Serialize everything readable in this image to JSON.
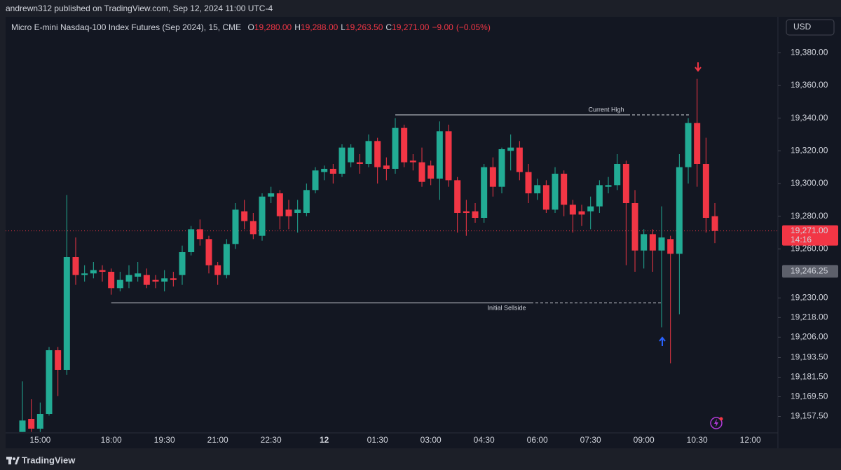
{
  "header": {
    "publisher": "andrewn312 published on TradingView.com, Sep 12, 2024 11:00 UTC-4"
  },
  "footer": {
    "brand": "TradingView"
  },
  "chart_data": {
    "type": "candlestick",
    "title": "Micro E-mini Nasdaq-100 Index Futures (Sep 2024), 15, CME",
    "currency": "USD",
    "ohlc_header": [
      {
        "key": "O",
        "value": 19280,
        "label": "19,280.00"
      },
      {
        "key": "H",
        "value": 19288,
        "label": "19,288.00"
      },
      {
        "key": "L",
        "value": 19263.5,
        "label": "19,263.50"
      },
      {
        "key": "C",
        "value": 19271,
        "label": "19,271.00"
      }
    ],
    "change": {
      "value": -9,
      "label": "−9.00"
    },
    "change_pct": {
      "value": -0.05,
      "label": "(−0.05%)"
    },
    "up_color": "#22ab94",
    "down_color": "#f23645",
    "categories": [
      null,
      null,
      "15:00",
      null,
      null,
      null,
      null,
      null,
      null,
      null,
      "18:00",
      null,
      null,
      null,
      null,
      null,
      "19:30",
      null,
      null,
      null,
      null,
      null,
      "21:00",
      null,
      null,
      null,
      null,
      null,
      "22:30",
      null,
      null,
      null,
      null,
      null,
      "12",
      null,
      null,
      null,
      null,
      null,
      "01:30",
      null,
      null,
      null,
      null,
      null,
      "03:00",
      null,
      null,
      null,
      null,
      null,
      "04:30",
      null,
      null,
      null,
      null,
      null,
      "06:00",
      null,
      null,
      null,
      null,
      null,
      "07:30",
      null,
      null,
      null,
      null,
      null,
      "09:00",
      null,
      null,
      null,
      null,
      null,
      "10:30",
      null,
      null,
      null,
      null,
      null,
      "12:00"
    ],
    "open": [
      19148,
      19156,
      19150,
      19159,
      19198,
      19186,
      19255,
      19244,
      19245,
      19247,
      19246,
      19236,
      19240,
      19243,
      19244,
      19241,
      19240,
      19242,
      19244,
      19258,
      19272,
      19266,
      19250,
      19244,
      19263,
      19283,
      19277,
      19268,
      19292,
      19294,
      19284,
      19282,
      19282,
      19296,
      19307,
      19309,
      19306,
      19313,
      19313,
      19312,
      19326,
      19311,
      19309,
      19334,
      19314,
      19313,
      19311,
      19303,
      19332,
      19302,
      19283,
      19283,
      19279,
      19310,
      19298,
      19320,
      19322,
      19307,
      19294,
      19299,
      19284,
      19306,
      19287,
      19283,
      19283,
      19286,
      19298,
      19299,
      19312,
      19288,
      19259,
      19269,
      19259,
      19266,
      19257,
      19310,
      19337,
      19312,
      19280,
      null,
      null,
      null,
      null
    ],
    "high": [
      19179,
      19168,
      19166,
      19200,
      19200,
      19293,
      19267,
      19250,
      19252,
      19250,
      19248,
      19246,
      19250,
      19252,
      19248,
      19244,
      19247,
      19246,
      19262,
      19274,
      19278,
      19268,
      19252,
      19266,
      19288,
      19290,
      19282,
      19294,
      19298,
      19296,
      19290,
      19290,
      19300,
      19310,
      19311,
      19312,
      19324,
      19324,
      19318,
      19330,
      19328,
      19316,
      19340,
      19336,
      19318,
      19322,
      19314,
      19338,
      19336,
      19304,
      19290,
      19288,
      19312,
      19316,
      19322,
      19330,
      19326,
      19312,
      19303,
      19302,
      19310,
      19308,
      19290,
      19287,
      19292,
      19302,
      19304,
      19318,
      19314,
      19296,
      19272,
      19272,
      19286,
      19268,
      19318,
      19340,
      19364,
      19328,
      19288,
      null,
      null,
      null,
      null
    ],
    "low": [
      19148,
      19148,
      19148,
      19158,
      19170,
      19183,
      19238,
      19240,
      19242,
      19240,
      19232,
      19234,
      19236,
      19240,
      19236,
      19236,
      19234,
      19237,
      19238,
      19256,
      19262,
      19245,
      19238,
      19242,
      19260,
      19272,
      19266,
      19265,
      19288,
      19272,
      19272,
      19270,
      19280,
      19294,
      19302,
      19300,
      19304,
      19310,
      19306,
      19310,
      19300,
      19302,
      19306,
      19310,
      19308,
      19298,
      19299,
      19290,
      19298,
      19270,
      19268,
      19276,
      19276,
      19292,
      19294,
      19308,
      19302,
      19288,
      19290,
      19282,
      19282,
      19280,
      19270,
      19274,
      19272,
      19282,
      19294,
      19296,
      19250,
      19246,
      19248,
      19246,
      19212,
      19190,
      19220,
      19300,
      19298,
      19270,
      19263.5,
      null,
      null,
      null,
      null
    ],
    "close": [
      19155,
      19150,
      19159,
      19198,
      19186,
      19255,
      19244,
      19245,
      19247,
      19246,
      19236,
      19241,
      19244,
      19245,
      19238,
      19240,
      19242,
      19241,
      19258,
      19272,
      19266,
      19250,
      19244,
      19263,
      19284,
      19277,
      19269,
      19292,
      19294,
      19280,
      19280,
      19284,
      19296,
      19308,
      19309,
      19306,
      19322,
      19322,
      19312,
      19326,
      19310,
      19309,
      19334,
      19313,
      19313,
      19301,
      19303,
      19332,
      19302,
      19282,
      19282,
      19279,
      19310,
      19298,
      19321,
      19322,
      19307,
      19294,
      19299,
      19284,
      19306,
      19287,
      19281,
      19281,
      19286,
      19299,
      19299,
      19312,
      19288,
      19259,
      19269,
      19259,
      19267,
      19257,
      19310,
      19337,
      19312,
      19279,
      19271,
      null,
      null,
      null,
      null
    ],
    "ylim": [
      19138,
      19402
    ],
    "yticks": [
      {
        "value": 19380,
        "label": "19,380.00"
      },
      {
        "value": 19360,
        "label": "19,360.00"
      },
      {
        "value": 19340,
        "label": "19,340.00"
      },
      {
        "value": 19320,
        "label": "19,320.00"
      },
      {
        "value": 19300,
        "label": "19,300.00"
      },
      {
        "value": 19280,
        "label": "19,280.00"
      },
      {
        "value": 19260,
        "label": "19,260.00"
      },
      {
        "value": 19230,
        "label": "19,230.00"
      },
      {
        "value": 19218,
        "label": "19,218.00"
      },
      {
        "value": 19206,
        "label": "19,206.00"
      },
      {
        "value": 19193.5,
        "label": "19,193.50"
      },
      {
        "value": 19181.5,
        "label": "19,181.50"
      },
      {
        "value": 19169.5,
        "label": "19,169.50"
      },
      {
        "value": 19157.5,
        "label": "19,157.50"
      }
    ],
    "levels": [
      {
        "label": "Current High",
        "value": 19342
      },
      {
        "label": "Initial Sellside",
        "value": 19227
      }
    ],
    "last_price": {
      "value": 19271,
      "label": "19,271.00",
      "countdown": "14:16"
    },
    "price_marker": {
      "value": 19246.25,
      "label": "19,246.25"
    }
  }
}
